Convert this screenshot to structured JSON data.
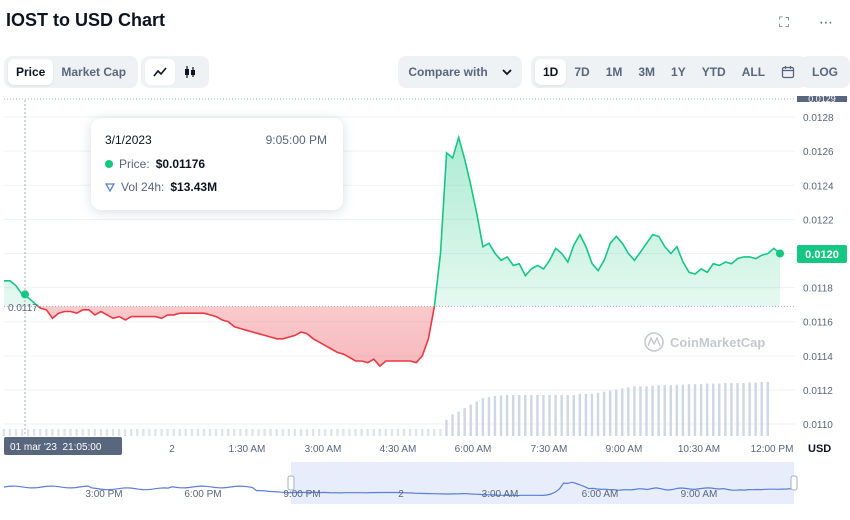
{
  "title": "IOST to USD Chart",
  "icons": {
    "expand": "fullscreen-icon",
    "more": "more-icon"
  },
  "toolbar": {
    "view_tabs": [
      "Price",
      "Market Cap"
    ],
    "compare_label": "Compare with",
    "ranges": [
      "1D",
      "7D",
      "1M",
      "3M",
      "1Y",
      "YTD",
      "ALL"
    ],
    "log_label": "LOG"
  },
  "tooltip": {
    "date": "3/1/2023",
    "time": "9:05:00 PM",
    "price_label": "Price:",
    "price_value": "$0.01176",
    "vol_label": "Vol 24h:",
    "vol_value": "$13.43M"
  },
  "crosshair_label": "01 mar '23  21:05:00",
  "open_price_label": "0.0117",
  "current_price_label": "0.0120",
  "watermark": "CoinMarketCap",
  "colors": {
    "up": "#16c784",
    "down": "#ea3943",
    "volume": "#cfd6e4",
    "nav": "#5b7ed6"
  },
  "chart_data": {
    "type": "line",
    "x_ticks": [
      "2",
      "1:30 AM",
      "3:00 AM",
      "4:30 AM",
      "6:00 AM",
      "7:30 AM",
      "9:00 AM",
      "10:30 AM",
      "12:00 PM"
    ],
    "y_ticks": [
      "0.0128",
      "0.0126",
      "0.0124",
      "0.0122",
      "0.0120",
      "0.0118",
      "0.0116",
      "0.0114",
      "0.0112",
      "0.0110"
    ],
    "y_top_partial": "0.0129",
    "y_unit": "USD",
    "ylim": [
      0.01093,
      0.0129
    ],
    "baseline": 0.01169,
    "series": [
      {
        "values": [
          0.01184,
          0.01184,
          0.01181,
          0.01176,
          0.01174,
          0.01171,
          0.01168,
          0.01167,
          0.01162,
          0.01165,
          0.01166,
          0.01166,
          0.01165,
          0.01167,
          0.01167,
          0.01164,
          0.01166,
          0.01164,
          0.01162,
          0.01163,
          0.01161,
          0.01163,
          0.01163,
          0.01163,
          0.01163,
          0.01163,
          0.01162,
          0.01164,
          0.01164,
          0.01165,
          0.01165,
          0.01165,
          0.01165,
          0.01165,
          0.01164,
          0.01163,
          0.01161,
          0.0116,
          0.01157,
          0.01156,
          0.01155,
          0.01154,
          0.01153,
          0.01152,
          0.01151,
          0.0115,
          0.0115,
          0.01151,
          0.01152,
          0.01154,
          0.01153,
          0.0115,
          0.01148,
          0.01146,
          0.01144,
          0.01142,
          0.01141,
          0.01139,
          0.01137,
          0.01137,
          0.01136,
          0.01138,
          0.01134,
          0.01137,
          0.01137,
          0.01137,
          0.01137,
          0.01137,
          0.01136,
          0.0114,
          0.0115,
          0.01169,
          0.012,
          0.01259,
          0.01256,
          0.01268,
          0.01255,
          0.0124,
          0.01223,
          0.01204,
          0.01206,
          0.012,
          0.01196,
          0.01198,
          0.01193,
          0.01194,
          0.01187,
          0.01191,
          0.01193,
          0.01191,
          0.01196,
          0.01203,
          0.012,
          0.01195,
          0.01205,
          0.01211,
          0.01204,
          0.01194,
          0.0119,
          0.01196,
          0.01206,
          0.0121,
          0.01206,
          0.012,
          0.01196,
          0.01201,
          0.01206,
          0.01211,
          0.0121,
          0.01204,
          0.012,
          0.01204,
          0.01195,
          0.01189,
          0.01188,
          0.01191,
          0.01189,
          0.01194,
          0.01193,
          0.01195,
          0.01194,
          0.01197,
          0.01198,
          0.01198,
          0.01197,
          0.01199,
          0.012,
          0.01203,
          0.012
        ]
      }
    ],
    "volume": [
      0.13,
      0.13,
      0.13,
      0.13,
      0.13,
      0.13,
      0.13,
      0.13,
      0.13,
      0.13,
      0.13,
      0.13,
      0.13,
      0.13,
      0.13,
      0.13,
      0.13,
      0.13,
      0.13,
      0.13,
      0.13,
      0.13,
      0.13,
      0.13,
      0.13,
      0.13,
      0.13,
      0.13,
      0.13,
      0.13,
      0.13,
      0.13,
      0.13,
      0.13,
      0.13,
      0.13,
      0.13,
      0.13,
      0.13,
      0.13,
      0.13,
      0.13,
      0.13,
      0.13,
      0.13,
      0.13,
      0.13,
      0.13,
      0.13,
      0.13,
      0.13,
      0.13,
      0.13,
      0.13,
      0.13,
      0.13,
      0.13,
      0.13,
      0.13,
      0.13,
      0.13,
      0.13,
      0.13,
      0.13,
      0.13,
      0.13,
      0.13,
      0.13,
      0.13,
      0.13,
      0.13,
      0.13,
      0.13,
      0.3,
      0.4,
      0.45,
      0.52,
      0.58,
      0.64,
      0.7,
      0.72,
      0.74,
      0.75,
      0.76,
      0.76,
      0.76,
      0.76,
      0.76,
      0.76,
      0.76,
      0.76,
      0.76,
      0.76,
      0.76,
      0.76,
      0.78,
      0.78,
      0.78,
      0.8,
      0.82,
      0.84,
      0.86,
      0.88,
      0.9,
      0.92,
      0.92,
      0.92,
      0.93,
      0.94,
      0.94,
      0.94,
      0.95,
      0.95,
      0.96,
      0.96,
      0.96,
      0.97,
      0.97,
      0.97,
      0.98,
      0.98,
      0.98,
      0.98,
      0.99,
      0.99,
      1.0,
      1.0
    ],
    "navigator_ticks": [
      "3:00 PM",
      "6:00 PM",
      "9:00 PM",
      "2",
      "3:00 AM",
      "6:00 AM",
      "9:00 AM"
    ],
    "grid": true
  }
}
